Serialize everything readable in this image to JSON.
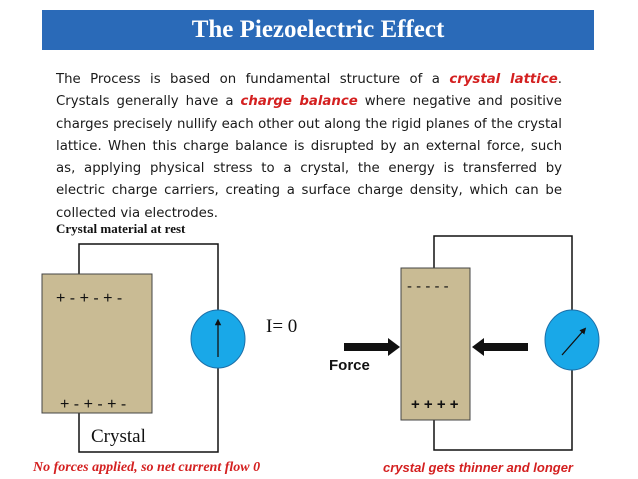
{
  "title": "The Piezoelectric Effect",
  "paragraph": {
    "p1": "The Process is based on fundamental structure of a ",
    "h1": "crystal lattice",
    "p2": ". Crystals generally have a ",
    "h2": "charge balance",
    "p3": " where negative and positive charges precisely nullify each other out along the rigid planes of the crystal lattice. When this charge balance is disrupted by an external force, such as, applying physical stress to a crystal, the energy is transferred by electric charge carriers, creating a surface charge density, which can be collected via electrodes."
  },
  "left_diagram": {
    "heading": "Crystal material at rest",
    "top_charges": "+ - + - + -",
    "bottom_charges": "+ - + - + -",
    "crystal_label": "Crystal",
    "current_label": "I= 0",
    "caption": "No forces applied, so net current flow 0"
  },
  "right_diagram": {
    "top_charges": "- - - - -",
    "bottom_charges": "+ + + +",
    "force_label": "Force",
    "caption": "crystal gets thinner and longer"
  },
  "colors": {
    "title_bar": "#2a6ab8",
    "crystal_fill": "#c9bb94",
    "meter_fill": "#19a8e8",
    "highlight": "#d42020"
  }
}
